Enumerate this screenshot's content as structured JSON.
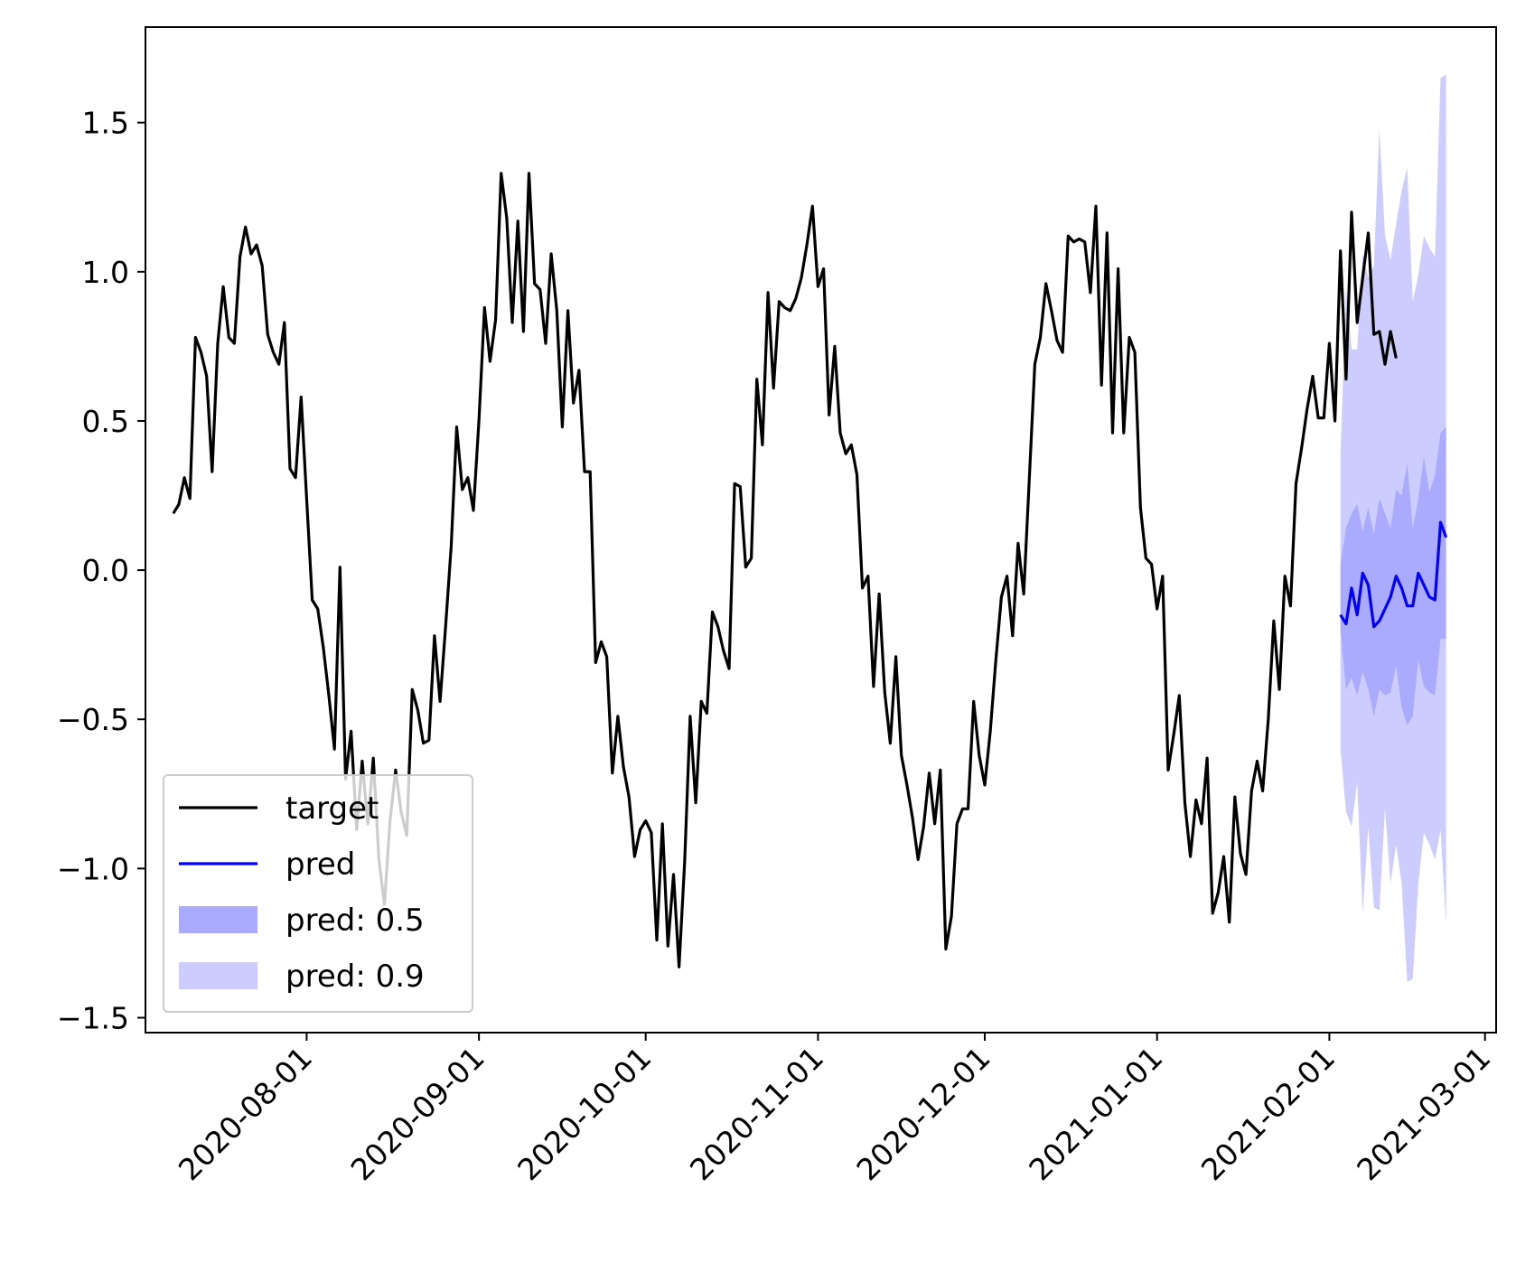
{
  "chart_data": {
    "type": "line",
    "title": "",
    "xlabel": "",
    "ylabel": "",
    "x_range": [
      "2020-07-03",
      "2021-03-03"
    ],
    "ylim": [
      -1.55,
      1.82
    ],
    "grid": false,
    "legend_placement": "lower-left",
    "x_ticks": [
      "2020-08-01",
      "2020-09-01",
      "2020-10-01",
      "2020-11-01",
      "2020-12-01",
      "2021-01-01",
      "2021-02-01",
      "2021-03-01"
    ],
    "y_ticks": [
      {
        "value": 1.5,
        "label": "1.5"
      },
      {
        "value": 1.0,
        "label": "1.0"
      },
      {
        "value": 0.5,
        "label": "0.5"
      },
      {
        "value": 0.0,
        "label": "0.0"
      },
      {
        "value": -0.5,
        "label": "−0.5"
      },
      {
        "value": -1.0,
        "label": "−1.0"
      },
      {
        "value": -1.5,
        "label": "−1.5"
      }
    ],
    "legend": [
      {
        "label": "target",
        "kind": "line",
        "color": "#000000"
      },
      {
        "label": "pred",
        "kind": "line",
        "color": "#0000ff"
      },
      {
        "label": "pred: 0.5",
        "kind": "band",
        "color": "#aaaaff"
      },
      {
        "label": "pred: 0.9",
        "kind": "band",
        "color": "#ccccff"
      }
    ],
    "colors": {
      "target": "#000000",
      "pred": "#0000ff",
      "band_0_5": "#aaaaff",
      "band_0_9": "#ccccff"
    },
    "target": {
      "start": "2020-07-08",
      "values": [
        0.19,
        0.22,
        0.31,
        0.24,
        0.78,
        0.73,
        0.65,
        0.33,
        0.76,
        0.95,
        0.78,
        0.76,
        1.05,
        1.15,
        1.06,
        1.09,
        1.02,
        0.79,
        0.73,
        0.69,
        0.83,
        0.34,
        0.31,
        0.58,
        0.24,
        -0.1,
        -0.13,
        -0.26,
        -0.42,
        -0.6,
        0.01,
        -0.7,
        -0.54,
        -0.87,
        -0.64,
        -0.85,
        -0.63,
        -0.97,
        -1.12,
        -0.84,
        -0.67,
        -0.81,
        -0.89,
        -0.4,
        -0.47,
        -0.58,
        -0.57,
        -0.22,
        -0.44,
        -0.19,
        0.08,
        0.48,
        0.27,
        0.31,
        0.2,
        0.5,
        0.88,
        0.7,
        0.84,
        1.33,
        1.18,
        0.83,
        1.17,
        0.8,
        1.33,
        0.96,
        0.94,
        0.76,
        1.06,
        0.87,
        0.48,
        0.87,
        0.56,
        0.67,
        0.33,
        0.33,
        -0.31,
        -0.24,
        -0.29,
        -0.68,
        -0.49,
        -0.66,
        -0.76,
        -0.96,
        -0.87,
        -0.84,
        -0.88,
        -1.24,
        -0.85,
        -1.26,
        -1.02,
        -1.33,
        -0.98,
        -0.49,
        -0.78,
        -0.44,
        -0.48,
        -0.14,
        -0.19,
        -0.27,
        -0.33,
        0.29,
        0.28,
        0.01,
        0.04,
        0.64,
        0.42,
        0.93,
        0.61,
        0.9,
        0.88,
        0.87,
        0.91,
        0.98,
        1.09,
        1.22,
        0.95,
        1.01,
        0.52,
        0.75,
        0.46,
        0.39,
        0.42,
        0.32,
        -0.06,
        -0.02,
        -0.39,
        -0.08,
        -0.41,
        -0.58,
        -0.29,
        -0.62,
        -0.72,
        -0.83,
        -0.97,
        -0.86,
        -0.68,
        -0.85,
        -0.67,
        -1.27,
        -1.16,
        -0.85,
        -0.8,
        -0.8,
        -0.44,
        -0.62,
        -0.72,
        -0.54,
        -0.3,
        -0.09,
        -0.02,
        -0.22,
        0.09,
        -0.08,
        0.3,
        0.69,
        0.78,
        0.96,
        0.87,
        0.77,
        0.73,
        1.12,
        1.1,
        1.11,
        1.1,
        0.93,
        1.22,
        0.62,
        1.13,
        0.46,
        1.01,
        0.46,
        0.78,
        0.73,
        0.21,
        0.04,
        0.02,
        -0.13,
        -0.02,
        -0.67,
        -0.55,
        -0.42,
        -0.78,
        -0.96,
        -0.77,
        -0.85,
        -0.63,
        -1.15,
        -1.08,
        -0.96,
        -1.18,
        -0.76,
        -0.95,
        -1.02,
        -0.74,
        -0.64,
        -0.74,
        -0.5,
        -0.17,
        -0.4,
        -0.02,
        -0.12,
        0.29,
        0.41,
        0.54,
        0.65,
        0.51,
        0.51,
        0.76,
        0.5,
        1.07,
        0.64,
        1.2,
        0.83,
        0.98,
        1.13,
        0.79,
        0.8,
        0.69,
        0.8,
        0.71
      ]
    },
    "forecast": {
      "start": "2021-02-03",
      "pred": [
        -0.15,
        -0.18,
        -0.06,
        -0.15,
        -0.01,
        -0.05,
        -0.19,
        -0.17,
        -0.13,
        -0.09,
        -0.02,
        -0.06,
        -0.12,
        -0.12,
        -0.01,
        -0.05,
        -0.09,
        -0.1,
        0.16,
        0.11
      ],
      "band_0_5_lower": [
        -0.2,
        -0.4,
        -0.36,
        -0.42,
        -0.34,
        -0.4,
        -0.49,
        -0.4,
        -0.42,
        -0.41,
        -0.32,
        -0.46,
        -0.52,
        -0.49,
        -0.3,
        -0.39,
        -0.41,
        -0.42,
        -0.23,
        -0.23
      ],
      "band_0_5_upper": [
        0.02,
        0.14,
        0.19,
        0.22,
        0.13,
        0.21,
        0.12,
        0.24,
        0.19,
        0.14,
        0.27,
        0.25,
        0.36,
        0.14,
        0.24,
        0.38,
        0.26,
        0.32,
        0.46,
        0.48
      ],
      "band_0_9_lower": [
        -0.6,
        -0.81,
        -0.86,
        -0.71,
        -1.15,
        -0.86,
        -1.13,
        -1.14,
        -0.8,
        -1.05,
        -0.92,
        -1.05,
        -1.38,
        -1.37,
        -1.05,
        -0.88,
        -0.92,
        -0.97,
        -0.87,
        -1.19
      ],
      "band_0_9_upper": [
        0.38,
        0.95,
        0.74,
        0.74,
        1.06,
        0.98,
        1.02,
        1.48,
        1.12,
        1.04,
        1.16,
        1.27,
        1.35,
        0.9,
        0.99,
        1.12,
        1.08,
        1.05,
        1.65,
        1.66
      ]
    }
  }
}
